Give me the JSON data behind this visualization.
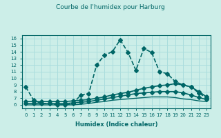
{
  "title": "Courbe de l'humidex pour Harburg",
  "xlabel": "Humidex (Indice chaleur)",
  "ylabel": "",
  "bg_color": "#cceee8",
  "grid_color": "#aadddd",
  "line_color": "#006666",
  "xlim": [
    -0.5,
    23.5
  ],
  "ylim": [
    5.5,
    16.5
  ],
  "xticks": [
    0,
    1,
    2,
    3,
    4,
    5,
    6,
    7,
    8,
    9,
    10,
    11,
    12,
    13,
    14,
    15,
    16,
    17,
    18,
    19,
    20,
    21,
    22,
    23
  ],
  "yticks": [
    6,
    7,
    8,
    9,
    10,
    11,
    12,
    13,
    14,
    15,
    16
  ],
  "series": [
    {
      "x": [
        0,
        1,
        2,
        3,
        4,
        5,
        6,
        7,
        8,
        9,
        10,
        11,
        12,
        13,
        14,
        15,
        16,
        17,
        18,
        19,
        20,
        21,
        22,
        23
      ],
      "y": [
        8.7,
        6.7,
        6.2,
        6.2,
        6.0,
        6.0,
        6.2,
        7.5,
        7.7,
        12.0,
        13.5,
        14.0,
        15.8,
        13.9,
        11.2,
        14.5,
        13.9,
        11.0,
        10.7,
        9.5,
        9.0,
        8.7,
        7.8,
        7.0
      ],
      "marker": "D",
      "markersize": 3,
      "linewidth": 1.2,
      "linestyle": "--"
    },
    {
      "x": [
        0,
        1,
        2,
        3,
        4,
        5,
        6,
        7,
        8,
        9,
        10,
        11,
        12,
        13,
        14,
        15,
        16,
        17,
        18,
        19,
        20,
        21,
        22,
        23
      ],
      "y": [
        6.5,
        6.5,
        6.5,
        6.5,
        6.5,
        6.5,
        6.6,
        6.7,
        6.8,
        7.0,
        7.2,
        7.5,
        7.7,
        7.9,
        8.2,
        8.5,
        8.7,
        8.9,
        9.0,
        9.2,
        9.0,
        8.7,
        8.0,
        7.2
      ],
      "marker": "D",
      "markersize": 3,
      "linewidth": 1.2,
      "linestyle": "-"
    },
    {
      "x": [
        0,
        1,
        2,
        3,
        4,
        5,
        6,
        7,
        8,
        9,
        10,
        11,
        12,
        13,
        14,
        15,
        16,
        17,
        18,
        19,
        20,
        21,
        22,
        23
      ],
      "y": [
        6.2,
        6.2,
        6.2,
        6.2,
        6.2,
        6.2,
        6.3,
        6.4,
        6.5,
        6.7,
        6.9,
        7.1,
        7.3,
        7.5,
        7.7,
        7.8,
        7.9,
        8.0,
        8.0,
        8.0,
        7.8,
        7.5,
        7.1,
        6.8
      ],
      "marker": "D",
      "markersize": 3,
      "linewidth": 1.2,
      "linestyle": "-"
    },
    {
      "x": [
        0,
        1,
        2,
        3,
        4,
        5,
        6,
        7,
        8,
        9,
        10,
        11,
        12,
        13,
        14,
        15,
        16,
        17,
        18,
        19,
        20,
        21,
        22,
        23
      ],
      "y": [
        6.0,
        6.0,
        6.0,
        6.0,
        6.0,
        6.0,
        6.0,
        6.1,
        6.2,
        6.4,
        6.5,
        6.7,
        6.8,
        6.9,
        7.0,
        7.1,
        7.2,
        7.2,
        7.2,
        7.1,
        6.9,
        6.8,
        6.6,
        6.5
      ],
      "marker": null,
      "markersize": 0,
      "linewidth": 1.0,
      "linestyle": "-"
    }
  ]
}
